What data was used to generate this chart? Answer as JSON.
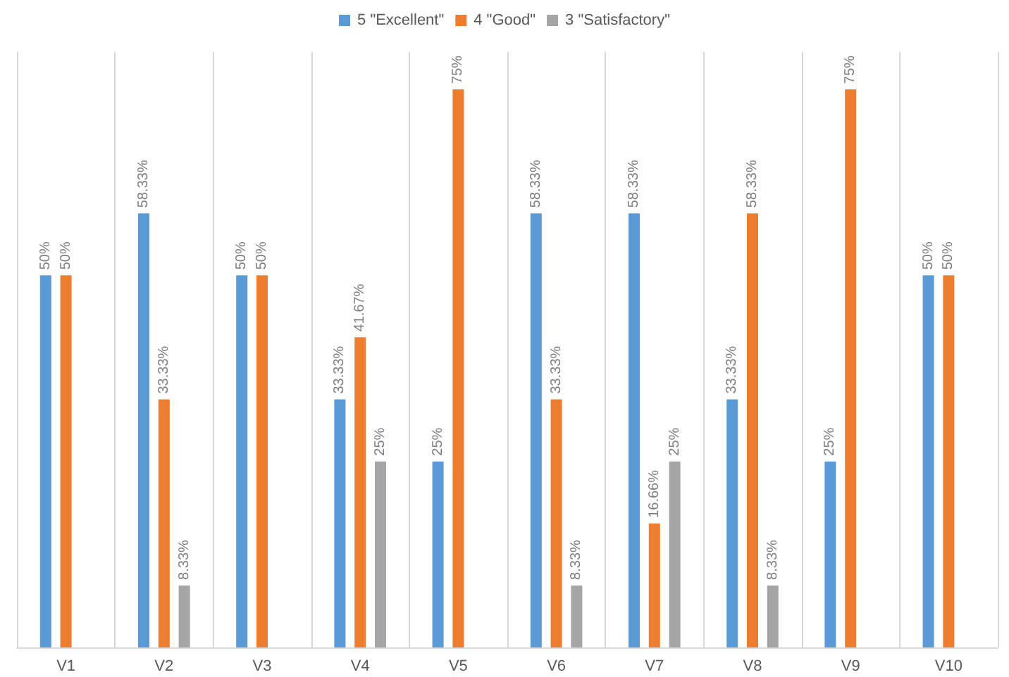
{
  "chart_data": {
    "type": "bar",
    "categories": [
      "V1",
      "V2",
      "V3",
      "V4",
      "V5",
      "V6",
      "V7",
      "V8",
      "V9",
      "V10"
    ],
    "series": [
      {
        "name": "5 \"Excellent\"",
        "color": "#5b9bd5",
        "values": [
          50,
          58.33,
          50,
          33.33,
          25,
          58.33,
          58.33,
          33.33,
          25,
          50
        ],
        "value_labels": [
          "50%",
          "58.33%",
          "50%",
          "33.33%",
          "25%",
          "58.33%",
          "58.33%",
          "33.33%",
          "25%",
          "50%"
        ]
      },
      {
        "name": "4 \"Good\"",
        "color": "#ed7d31",
        "values": [
          50,
          33.33,
          50,
          41.67,
          75,
          33.33,
          16.66,
          58.33,
          75,
          50
        ],
        "value_labels": [
          "50%",
          "33.33%",
          "50%",
          "41.67%",
          "75%",
          "33.33%",
          "16.66%",
          "58.33%",
          "75%",
          "50%"
        ]
      },
      {
        "name": "3 \"Satisfactory\"",
        "color": "#a5a5a5",
        "values": [
          null,
          8.33,
          null,
          25,
          null,
          8.33,
          25,
          8.33,
          null,
          null
        ],
        "value_labels": [
          null,
          "8.33%",
          null,
          "25%",
          null,
          "8.33%",
          "25%",
          "8.33%",
          null,
          null
        ]
      }
    ],
    "grid": "x",
    "legend": "top"
  }
}
